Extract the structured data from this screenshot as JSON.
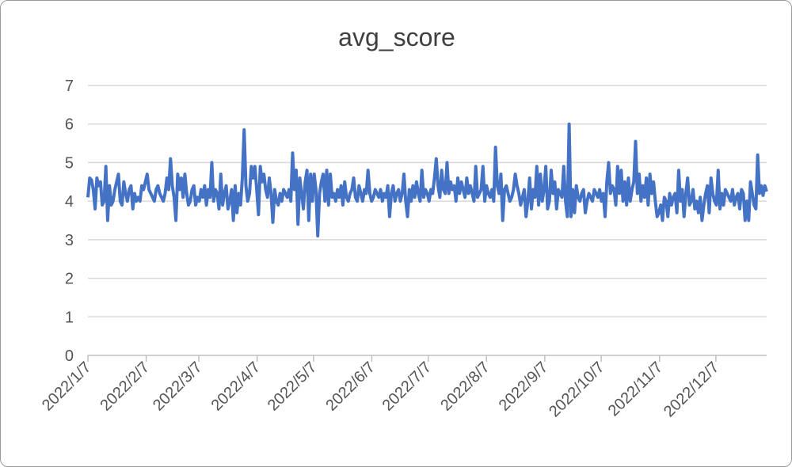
{
  "chart_data": {
    "type": "line",
    "title": "avg_score",
    "xlabel": "",
    "ylabel": "",
    "ylim": [
      0,
      7
    ],
    "y_ticks": [
      "0",
      "1",
      "2",
      "3",
      "4",
      "5",
      "6",
      "7"
    ],
    "x_ticks": [
      "2022/1/7",
      "2022/2/7",
      "2022/3/7",
      "2022/4/7",
      "2022/5/7",
      "2022/6/7",
      "2022/7/7",
      "2022/8/7",
      "2022/9/7",
      "2022/10/7",
      "2022/11/7",
      "2022/12/7"
    ],
    "x_start": "2022/1/7",
    "x_end": "2023/1/3",
    "grid": true,
    "legend": "none",
    "series": [
      {
        "color": "#4472C4",
        "values": [
          4.1,
          4.6,
          4.55,
          4.3,
          3.8,
          4.6,
          4.4,
          4.5,
          3.9,
          4.0,
          4.9,
          3.5,
          4.4,
          3.9,
          4.0,
          4.3,
          4.5,
          4.7,
          4.0,
          3.9,
          4.5,
          4.2,
          4.0,
          4.3,
          4.4,
          3.8,
          4.2,
          4.0,
          4.1,
          4.0,
          4.4,
          4.3,
          4.5,
          4.7,
          4.3,
          4.2,
          4.1,
          4.0,
          4.3,
          4.4,
          4.2,
          4.1,
          4.0,
          4.2,
          4.6,
          4.3,
          5.1,
          4.4,
          4.1,
          3.5,
          4.7,
          4.3,
          4.6,
          4.1,
          4.7,
          4.2,
          3.9,
          4.0,
          4.3,
          4.4,
          3.9,
          4.1,
          4.0,
          4.3,
          4.1,
          4.4,
          3.9,
          4.3,
          4.1,
          5.0,
          4.0,
          4.3,
          4.2,
          3.8,
          4.7,
          3.9,
          4.2,
          4.4,
          3.8,
          4.0,
          4.3,
          3.5,
          4.4,
          3.7,
          4.2,
          3.9,
          4.6,
          5.85,
          4.4,
          4.0,
          4.2,
          4.9,
          4.6,
          4.9,
          4.3,
          3.65,
          4.9,
          4.5,
          4.7,
          4.3,
          4.1,
          4.6,
          4.2,
          3.45,
          4.3,
          4.0,
          3.9,
          4.2,
          4.0,
          4.3,
          4.2,
          4.1,
          4.3,
          4.0,
          5.25,
          4.3,
          4.8,
          3.4,
          4.6,
          4.2,
          3.8,
          4.5,
          4.8,
          3.5,
          4.7,
          4.0,
          4.7,
          4.3,
          3.1,
          4.2,
          4.5,
          4.7,
          4.0,
          4.8,
          3.9,
          4.7,
          4.1,
          4.2,
          4.0,
          4.3,
          4.1,
          4.4,
          3.9,
          4.5,
          4.1,
          4.0,
          4.2,
          4.3,
          4.6,
          4.1,
          4.0,
          4.4,
          4.2,
          4.0,
          4.3,
          4.2,
          4.8,
          4.2,
          4.0,
          4.1,
          4.3,
          4.2,
          4.1,
          4.3,
          4.0,
          4.2,
          4.1,
          4.4,
          3.6,
          4.2,
          4.4,
          4.0,
          4.2,
          4.3,
          4.0,
          4.2,
          4.7,
          4.0,
          3.6,
          4.3,
          4.0,
          4.4,
          4.1,
          4.5,
          4.2,
          4.0,
          4.8,
          4.1,
          4.3,
          4.2,
          4.0,
          4.3,
          4.2,
          4.6,
          5.1,
          4.4,
          4.1,
          4.8,
          4.3,
          4.2,
          5.0,
          4.2,
          4.5,
          4.3,
          4.4,
          4.0,
          4.6,
          4.2,
          4.5,
          4.3,
          4.1,
          4.6,
          4.2,
          4.4,
          4.2,
          4.0,
          4.9,
          4.1,
          4.2,
          4.3,
          4.9,
          4.0,
          4.4,
          4.2,
          4.1,
          4.3,
          4.0,
          5.4,
          4.4,
          4.2,
          4.7,
          3.5,
          4.3,
          4.4,
          4.2,
          4.0,
          4.1,
          4.3,
          4.7,
          4.4,
          4.2,
          3.9,
          4.1,
          4.3,
          3.6,
          4.0,
          4.6,
          3.8,
          4.3,
          4.1,
          4.9,
          3.9,
          4.7,
          4.0,
          4.3,
          4.9,
          3.8,
          4.0,
          4.8,
          4.2,
          4.5,
          3.8,
          4.3,
          4.2,
          4.1,
          4.9,
          4.0,
          3.6,
          6.0,
          3.6,
          4.3,
          3.7,
          4.4,
          4.1,
          4.0,
          4.2,
          4.3,
          3.7,
          4.0,
          4.2,
          4.1,
          4.0,
          4.3,
          4.2,
          4.1,
          4.3,
          4.0,
          4.2,
          3.6,
          4.5,
          5.0,
          4.2,
          4.4,
          4.3,
          3.9,
          4.9,
          4.2,
          4.8,
          4.0,
          4.5,
          3.9,
          4.6,
          4.0,
          4.3,
          4.5,
          5.55,
          4.2,
          4.7,
          4.0,
          4.4,
          4.1,
          4.6,
          3.9,
          4.7,
          4.2,
          4.5,
          4.0,
          3.6,
          3.7,
          3.9,
          3.5,
          4.1,
          4.0,
          3.6,
          4.2,
          3.9,
          4.1,
          4.2,
          3.7,
          4.8,
          4.0,
          4.3,
          3.6,
          4.2,
          4.6,
          3.9,
          4.0,
          4.3,
          3.8,
          4.0,
          3.7,
          4.1,
          3.5,
          3.9,
          4.2,
          4.4,
          3.7,
          4.6,
          4.2,
          4.0,
          3.9,
          4.8,
          3.8,
          4.2,
          3.9,
          4.3,
          4.2,
          4.1,
          4.0,
          4.3,
          3.9,
          4.1,
          4.2,
          3.8,
          4.3,
          4.2,
          3.5,
          4.0,
          3.5,
          4.5,
          4.2,
          3.9,
          3.8,
          5.2,
          4.2,
          4.4,
          4.15,
          4.4,
          4.25
        ]
      }
    ]
  }
}
